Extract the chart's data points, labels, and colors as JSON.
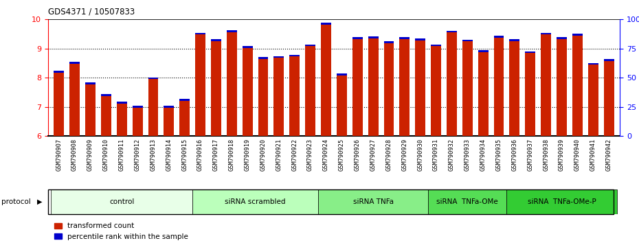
{
  "title": "GDS4371 / 10507833",
  "samples": [
    "GSM790907",
    "GSM790908",
    "GSM790909",
    "GSM790910",
    "GSM790911",
    "GSM790912",
    "GSM790913",
    "GSM790914",
    "GSM790915",
    "GSM790916",
    "GSM790917",
    "GSM790918",
    "GSM790919",
    "GSM790920",
    "GSM790921",
    "GSM790922",
    "GSM790923",
    "GSM790924",
    "GSM790925",
    "GSM790926",
    "GSM790927",
    "GSM790928",
    "GSM790929",
    "GSM790930",
    "GSM790931",
    "GSM790932",
    "GSM790933",
    "GSM790934",
    "GSM790935",
    "GSM790936",
    "GSM790937",
    "GSM790938",
    "GSM790939",
    "GSM790940",
    "GSM790941",
    "GSM790942"
  ],
  "red_values": [
    8.18,
    8.48,
    7.78,
    7.38,
    7.12,
    6.97,
    7.95,
    6.98,
    7.2,
    9.48,
    9.25,
    9.55,
    9.02,
    8.65,
    8.68,
    8.73,
    9.08,
    9.82,
    8.08,
    9.32,
    9.35,
    9.18,
    9.32,
    9.28,
    9.08,
    9.55,
    9.25,
    8.88,
    9.38,
    9.25,
    8.85,
    9.48,
    9.32,
    9.45,
    8.45,
    8.58
  ],
  "blue_heights": [
    0.07,
    0.07,
    0.06,
    0.06,
    0.06,
    0.06,
    0.06,
    0.06,
    0.08,
    0.06,
    0.07,
    0.07,
    0.06,
    0.07,
    0.06,
    0.06,
    0.06,
    0.07,
    0.06,
    0.07,
    0.07,
    0.07,
    0.07,
    0.06,
    0.06,
    0.06,
    0.06,
    0.06,
    0.06,
    0.07,
    0.06,
    0.06,
    0.07,
    0.06,
    0.06,
    0.06
  ],
  "groups": [
    {
      "label": "control",
      "start": 0,
      "end": 9,
      "color": "#e8ffe8"
    },
    {
      "label": "siRNA scrambled",
      "start": 9,
      "end": 17,
      "color": "#bbffbb"
    },
    {
      "label": "siRNA TNFa",
      "start": 17,
      "end": 24,
      "color": "#88ee88"
    },
    {
      "label": "siRNA  TNFa-OMe",
      "start": 24,
      "end": 29,
      "color": "#55dd55"
    },
    {
      "label": "siRNA  TNFa-OMe-P",
      "start": 29,
      "end": 36,
      "color": "#33cc33"
    }
  ],
  "ylim": [
    6,
    10
  ],
  "yticks_left": [
    6,
    7,
    8,
    9,
    10
  ],
  "yticks_right": [
    0,
    25,
    50,
    75,
    100
  ],
  "bar_color": "#cc2200",
  "blue_color": "#0000cc",
  "tick_bg_color": "#cccccc"
}
